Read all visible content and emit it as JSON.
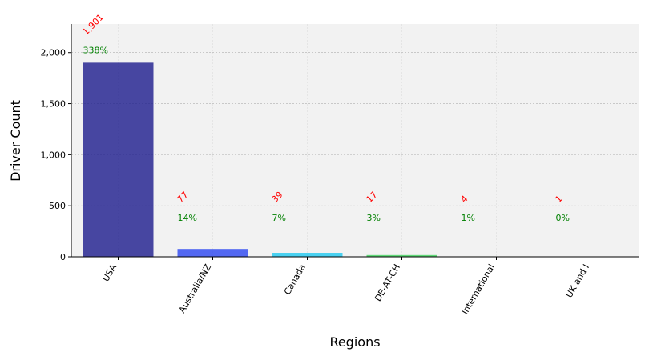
{
  "chart_data": {
    "type": "bar",
    "title": "",
    "xlabel": "Regions",
    "ylabel": "Driver Count",
    "categories": [
      "USA",
      "Australia/NZ",
      "Canada",
      "DE-AT-CH",
      "International",
      "UK and I"
    ],
    "values": [
      1901,
      77,
      39,
      17,
      4,
      1
    ],
    "value_labels": [
      "1,901",
      "77",
      "39",
      "17",
      "4",
      "1"
    ],
    "percent_labels": [
      "338%",
      "14%",
      "7%",
      "3%",
      "1%",
      "0%"
    ],
    "bar_colors": [
      "#1c1a8c",
      "#2b45f0",
      "#1ec8f0",
      "#3cd25a",
      "#a0e614",
      "#f0c81e"
    ],
    "ylim": [
      0,
      2280
    ],
    "yticks": [
      0,
      500,
      1000,
      1500,
      2000
    ],
    "ytick_labels": [
      "0",
      "500",
      "1,000",
      "1,500",
      "2,000"
    ],
    "grid": true,
    "background": "#f2f2f2",
    "value_label_color": "#ff0000",
    "percent_label_color": "#008000"
  }
}
